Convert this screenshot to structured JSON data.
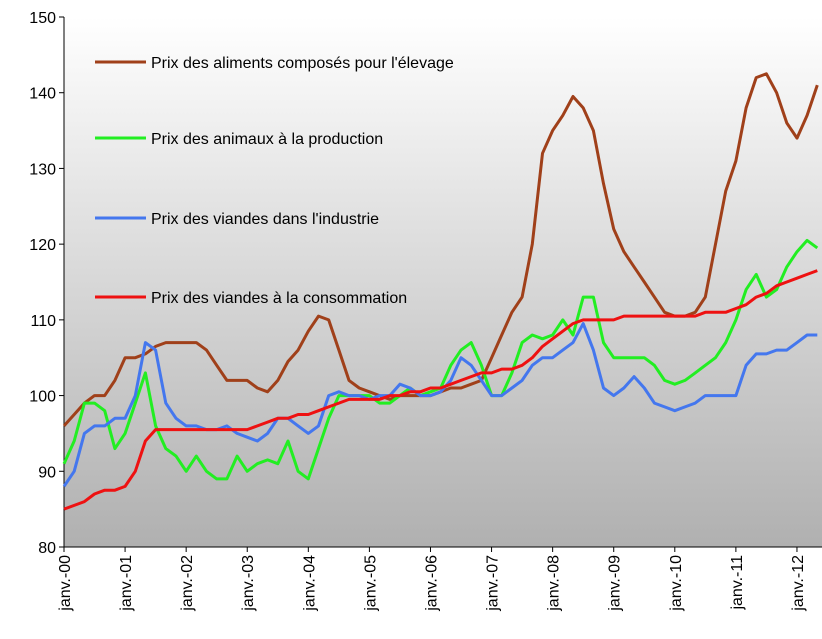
{
  "chart_data": {
    "type": "line",
    "categories": [
      "janv.-00",
      null,
      null,
      null,
      null,
      null,
      "janv.-01",
      null,
      null,
      null,
      null,
      null,
      "janv.-02",
      null,
      null,
      null,
      null,
      null,
      "janv.-03",
      null,
      null,
      null,
      null,
      null,
      "janv.-04",
      null,
      null,
      null,
      null,
      null,
      "janv.-05",
      null,
      null,
      null,
      null,
      null,
      "janv.-06",
      null,
      null,
      null,
      null,
      null,
      "janv.-07",
      null,
      null,
      null,
      null,
      null,
      "janv.-08",
      null,
      null,
      null,
      null,
      null,
      "janv.-09",
      null,
      null,
      null,
      null,
      null,
      "janv.-10",
      null,
      null,
      null,
      null,
      null,
      "janv.-11",
      null,
      null,
      null,
      null,
      null,
      "janv.-12",
      null,
      null
    ],
    "ylim": [
      80,
      150
    ],
    "yticks": [
      80,
      90,
      100,
      110,
      120,
      130,
      140,
      150
    ],
    "series": [
      {
        "name": "Prix des aliments composés pour l'élevage",
        "color": "#a0401a",
        "values": [
          96,
          97.5,
          99,
          100,
          100,
          102,
          105,
          105,
          105.5,
          106.5,
          107,
          107,
          107,
          107,
          106,
          104,
          102,
          102,
          102,
          101,
          100.5,
          102,
          104.5,
          106,
          108.5,
          110.5,
          110,
          106,
          102,
          101,
          100.5,
          100,
          99.5,
          100,
          100,
          100,
          100,
          100.5,
          101,
          101,
          101.5,
          102,
          105,
          108,
          111,
          113,
          120,
          132,
          135,
          137,
          139.5,
          138,
          135,
          128,
          122,
          119,
          117,
          115,
          113,
          111,
          110.5,
          110.5,
          111,
          113,
          120,
          127,
          131,
          138,
          142,
          142.5,
          140,
          136,
          134,
          137,
          141
        ]
      },
      {
        "name": "Prix des animaux à la production",
        "color": "#22ee22",
        "values": [
          91,
          94,
          99,
          99,
          98,
          93,
          95,
          99,
          103,
          96,
          93,
          92,
          90,
          92,
          90,
          89,
          89,
          92,
          90,
          91,
          91.5,
          91,
          94,
          90,
          89,
          93,
          97,
          100,
          100,
          100,
          100,
          99,
          99,
          100,
          101,
          100,
          100.5,
          101,
          104,
          106,
          107,
          104,
          100,
          100,
          103,
          107,
          108,
          107.5,
          108,
          110,
          108,
          113,
          113,
          107,
          105,
          105,
          105,
          105,
          104,
          102,
          101.5,
          102,
          103,
          104,
          105,
          107,
          110,
          114,
          116,
          113,
          114,
          117,
          119,
          120.5,
          119.5
        ]
      },
      {
        "name": "Prix des viandes dans l'industrie",
        "color": "#4477ee",
        "values": [
          88,
          90,
          95,
          96,
          96,
          97,
          97,
          100,
          107,
          106,
          99,
          97,
          96,
          96,
          95.5,
          95.5,
          96,
          95,
          94.5,
          94,
          95,
          97,
          97,
          96,
          95,
          96,
          100,
          100.5,
          100,
          100,
          99.5,
          100,
          100,
          101.5,
          101,
          100,
          100,
          100.5,
          102,
          105,
          104,
          102,
          100,
          100,
          101,
          102,
          104,
          105,
          105,
          106,
          107,
          109.5,
          106,
          101,
          100,
          101,
          102.5,
          101,
          99,
          98.5,
          98,
          98.5,
          99,
          100,
          100,
          100,
          100,
          104,
          105.5,
          105.5,
          106,
          106,
          107,
          108,
          108
        ]
      },
      {
        "name": "Prix des viandes à la consommation",
        "color": "#ee1111",
        "values": [
          85,
          85.5,
          86,
          87,
          87.5,
          87.5,
          88,
          90,
          94,
          95.5,
          95.5,
          95.5,
          95.5,
          95.5,
          95.5,
          95.5,
          95.5,
          95.5,
          95.5,
          96,
          96.5,
          97,
          97,
          97.5,
          97.5,
          98,
          98.5,
          99,
          99.5,
          99.5,
          99.5,
          99.5,
          100,
          100,
          100.5,
          100.5,
          101,
          101,
          101.5,
          102,
          102.5,
          103,
          103,
          103.5,
          103.5,
          104,
          105,
          106.5,
          107.5,
          108.5,
          109.5,
          110,
          110,
          110,
          110,
          110.5,
          110.5,
          110.5,
          110.5,
          110.5,
          110.5,
          110.5,
          110.5,
          111,
          111,
          111,
          111.5,
          112,
          113,
          113.5,
          114.5,
          115,
          115.5,
          116,
          116.5
        ]
      }
    ]
  }
}
